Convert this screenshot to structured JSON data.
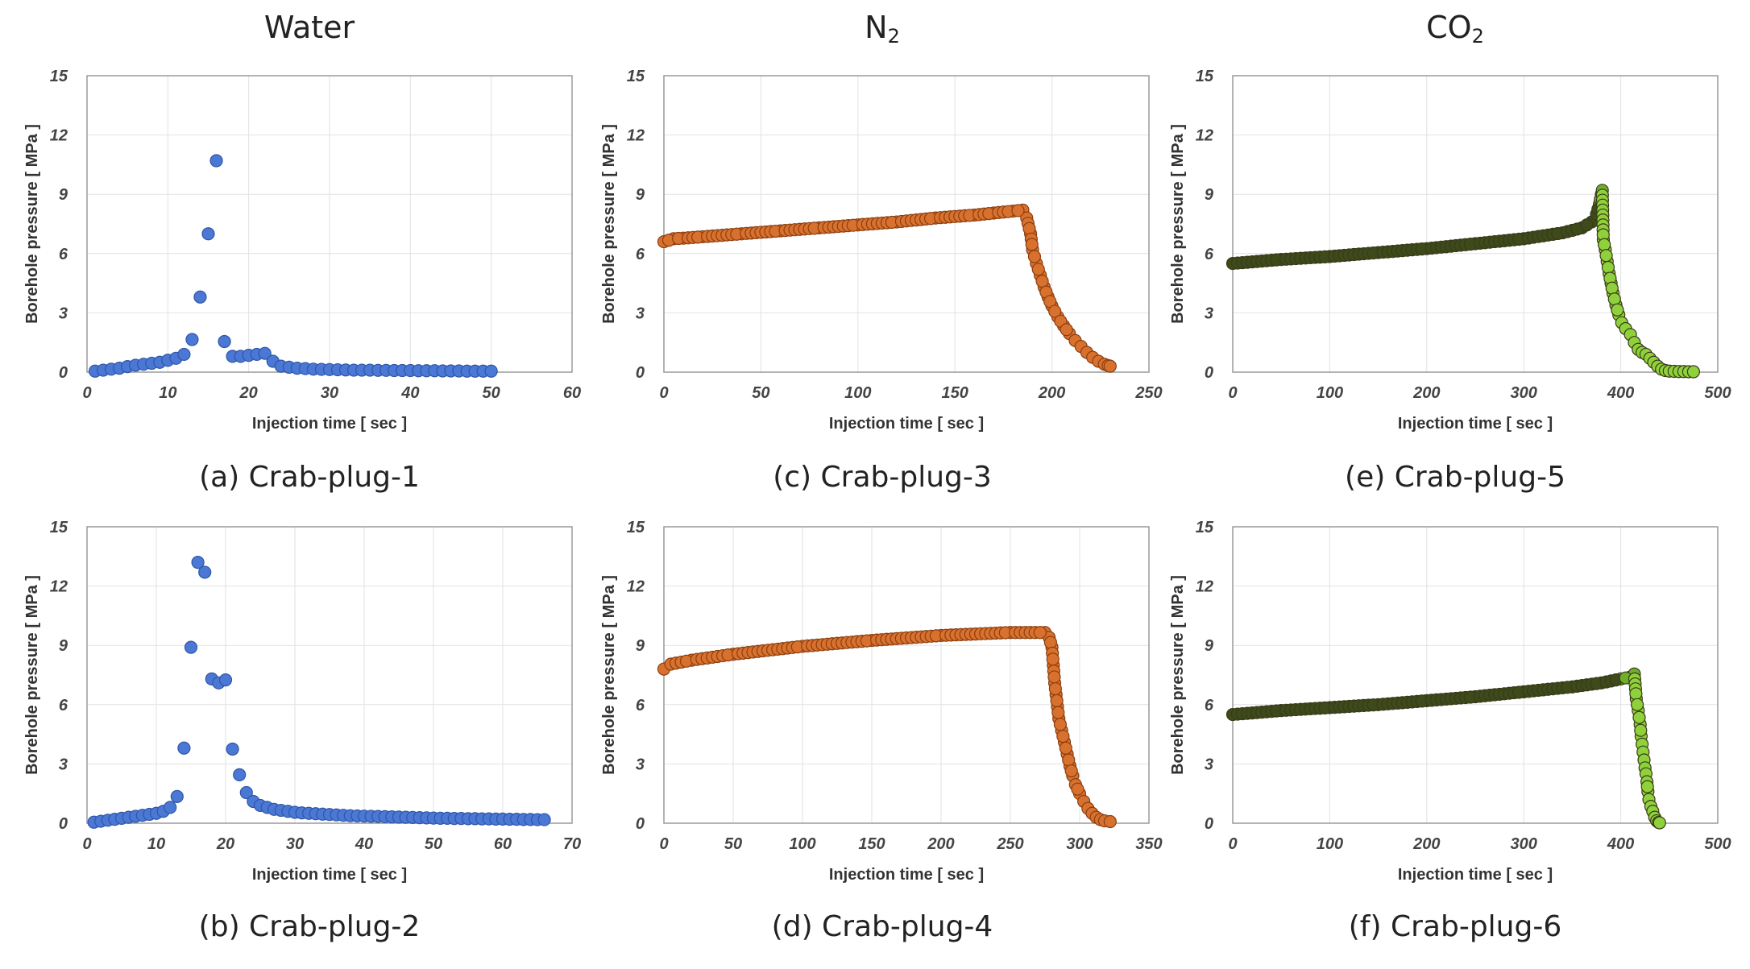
{
  "column_titles": [
    {
      "main": "Water",
      "sub": ""
    },
    {
      "main": "N",
      "sub": "2"
    },
    {
      "main": "CO",
      "sub": "2"
    }
  ],
  "chart_data": [
    {
      "type": "scatter",
      "caption": "(a) Crab-plug-1",
      "xlabel": "Injection time [ sec ]",
      "ylabel": "Borehole pressure [ MPa ]",
      "xlim": [
        0,
        60
      ],
      "xticks": [
        0,
        10,
        20,
        30,
        40,
        50,
        60
      ],
      "ylim": [
        0,
        15
      ],
      "yticks": [
        0,
        3,
        6,
        9,
        12,
        15
      ],
      "grid": true,
      "marker_color": "#4a78d4",
      "marker_edge": "#2f56a8",
      "marker_mode": "solid",
      "points": [
        [
          1,
          0.05
        ],
        [
          2,
          0.1
        ],
        [
          3,
          0.15
        ],
        [
          4,
          0.2
        ],
        [
          5,
          0.28
        ],
        [
          6,
          0.35
        ],
        [
          7,
          0.4
        ],
        [
          8,
          0.45
        ],
        [
          9,
          0.5
        ],
        [
          10,
          0.6
        ],
        [
          11,
          0.7
        ],
        [
          12,
          0.9
        ],
        [
          13,
          1.65
        ],
        [
          14,
          3.8
        ],
        [
          15,
          7.0
        ],
        [
          16,
          10.7
        ],
        [
          17,
          1.55
        ],
        [
          18,
          0.8
        ],
        [
          19,
          0.8
        ],
        [
          20,
          0.85
        ],
        [
          21,
          0.9
        ],
        [
          22,
          0.95
        ],
        [
          23,
          0.55
        ],
        [
          24,
          0.3
        ],
        [
          25,
          0.25
        ],
        [
          26,
          0.2
        ],
        [
          27,
          0.18
        ],
        [
          28,
          0.15
        ],
        [
          29,
          0.14
        ],
        [
          30,
          0.13
        ],
        [
          31,
          0.12
        ],
        [
          32,
          0.11
        ],
        [
          33,
          0.1
        ],
        [
          34,
          0.1
        ],
        [
          35,
          0.1
        ],
        [
          36,
          0.09
        ],
        [
          37,
          0.09
        ],
        [
          38,
          0.08
        ],
        [
          39,
          0.08
        ],
        [
          40,
          0.08
        ],
        [
          41,
          0.07
        ],
        [
          42,
          0.07
        ],
        [
          43,
          0.07
        ],
        [
          44,
          0.06
        ],
        [
          45,
          0.06
        ],
        [
          46,
          0.06
        ],
        [
          47,
          0.05
        ],
        [
          48,
          0.05
        ],
        [
          49,
          0.05
        ],
        [
          50,
          0.05
        ]
      ]
    },
    {
      "type": "scatter",
      "caption": "(b) Crab-plug-2",
      "xlabel": "Injection time [ sec ]",
      "ylabel": "Borehole pressure [ MPa ]",
      "xlim": [
        0,
        70
      ],
      "xticks": [
        0,
        10,
        20,
        30,
        40,
        50,
        60,
        70
      ],
      "ylim": [
        0,
        15
      ],
      "yticks": [
        0,
        3,
        6,
        9,
        12,
        15
      ],
      "grid": true,
      "marker_color": "#4a78d4",
      "marker_edge": "#2f56a8",
      "marker_mode": "solid",
      "points": [
        [
          1,
          0.05
        ],
        [
          2,
          0.1
        ],
        [
          3,
          0.15
        ],
        [
          4,
          0.2
        ],
        [
          5,
          0.25
        ],
        [
          6,
          0.3
        ],
        [
          7,
          0.35
        ],
        [
          8,
          0.4
        ],
        [
          9,
          0.45
        ],
        [
          10,
          0.5
        ],
        [
          11,
          0.6
        ],
        [
          12,
          0.8
        ],
        [
          13,
          1.35
        ],
        [
          14,
          3.8
        ],
        [
          15,
          8.9
        ],
        [
          16,
          13.2
        ],
        [
          17,
          12.7
        ],
        [
          18,
          7.3
        ],
        [
          19,
          7.1
        ],
        [
          20,
          7.25
        ],
        [
          21,
          3.75
        ],
        [
          22,
          2.45
        ],
        [
          23,
          1.55
        ],
        [
          24,
          1.1
        ],
        [
          25,
          0.9
        ],
        [
          26,
          0.8
        ],
        [
          27,
          0.7
        ],
        [
          28,
          0.65
        ],
        [
          29,
          0.6
        ],
        [
          30,
          0.55
        ],
        [
          31,
          0.52
        ],
        [
          32,
          0.5
        ],
        [
          33,
          0.48
        ],
        [
          34,
          0.46
        ],
        [
          35,
          0.44
        ],
        [
          36,
          0.42
        ],
        [
          37,
          0.4
        ],
        [
          38,
          0.38
        ],
        [
          39,
          0.37
        ],
        [
          40,
          0.36
        ],
        [
          41,
          0.35
        ],
        [
          42,
          0.34
        ],
        [
          43,
          0.33
        ],
        [
          44,
          0.32
        ],
        [
          45,
          0.31
        ],
        [
          46,
          0.3
        ],
        [
          47,
          0.29
        ],
        [
          48,
          0.28
        ],
        [
          49,
          0.27
        ],
        [
          50,
          0.26
        ],
        [
          51,
          0.25
        ],
        [
          52,
          0.25
        ],
        [
          53,
          0.24
        ],
        [
          54,
          0.24
        ],
        [
          55,
          0.23
        ],
        [
          56,
          0.23
        ],
        [
          57,
          0.22
        ],
        [
          58,
          0.22
        ],
        [
          59,
          0.21
        ],
        [
          60,
          0.21
        ],
        [
          61,
          0.2
        ],
        [
          62,
          0.2
        ],
        [
          63,
          0.19
        ],
        [
          64,
          0.19
        ],
        [
          65,
          0.18
        ],
        [
          66,
          0.18
        ]
      ]
    },
    {
      "type": "scatter",
      "caption": "(c) Crab-plug-3",
      "xlabel": "Injection time [ sec ]",
      "ylabel": "Borehole pressure [ MPa ]",
      "xlim": [
        0,
        250
      ],
      "xticks": [
        0,
        50,
        100,
        150,
        200,
        250
      ],
      "ylim": [
        0,
        15
      ],
      "yticks": [
        0,
        3,
        6,
        9,
        12,
        15
      ],
      "grid": true,
      "marker_color": "#d9712e",
      "marker_edge": "#8a3e10",
      "marker_mode": "solid",
      "points": [
        [
          0,
          6.6
        ],
        [
          5,
          6.75
        ],
        [
          10,
          6.78
        ],
        [
          20,
          6.85
        ],
        [
          40,
          7.0
        ],
        [
          60,
          7.15
        ],
        [
          80,
          7.3
        ],
        [
          100,
          7.45
        ],
        [
          120,
          7.6
        ],
        [
          140,
          7.8
        ],
        [
          160,
          7.95
        ],
        [
          170,
          8.05
        ],
        [
          180,
          8.15
        ],
        [
          185,
          8.2
        ],
        [
          187,
          7.8
        ],
        [
          189,
          7.0
        ],
        [
          190,
          6.2
        ],
        [
          192,
          5.5
        ],
        [
          194,
          4.9
        ],
        [
          196,
          4.3
        ],
        [
          198,
          3.8
        ],
        [
          200,
          3.35
        ],
        [
          203,
          2.8
        ],
        [
          206,
          2.35
        ],
        [
          209,
          1.95
        ],
        [
          212,
          1.6
        ],
        [
          215,
          1.3
        ],
        [
          218,
          1.0
        ],
        [
          221,
          0.75
        ],
        [
          224,
          0.55
        ],
        [
          227,
          0.4
        ],
        [
          229,
          0.33
        ],
        [
          230,
          0.3
        ]
      ]
    },
    {
      "type": "scatter",
      "caption": "(d) Crab-plug-4",
      "xlabel": "Injection time [ sec ]",
      "ylabel": "Borehole pressure [ MPa ]",
      "xlim": [
        0,
        350
      ],
      "xticks": [
        0,
        50,
        100,
        150,
        200,
        250,
        300,
        350
      ],
      "ylim": [
        0,
        15
      ],
      "yticks": [
        0,
        3,
        6,
        9,
        12,
        15
      ],
      "grid": true,
      "marker_color": "#d9712e",
      "marker_edge": "#8a3e10",
      "marker_mode": "solid",
      "points": [
        [
          0,
          7.8
        ],
        [
          5,
          8.05
        ],
        [
          20,
          8.25
        ],
        [
          50,
          8.55
        ],
        [
          100,
          8.95
        ],
        [
          150,
          9.25
        ],
        [
          200,
          9.5
        ],
        [
          250,
          9.65
        ],
        [
          275,
          9.65
        ],
        [
          278,
          9.4
        ],
        [
          280,
          8.9
        ],
        [
          281,
          8.0
        ],
        [
          282,
          7.1
        ],
        [
          283,
          6.5
        ],
        [
          284,
          5.9
        ],
        [
          285,
          5.3
        ],
        [
          287,
          4.7
        ],
        [
          289,
          4.1
        ],
        [
          291,
          3.5
        ],
        [
          293,
          2.9
        ],
        [
          295,
          2.4
        ],
        [
          297,
          1.95
        ],
        [
          300,
          1.5
        ],
        [
          303,
          1.1
        ],
        [
          306,
          0.75
        ],
        [
          309,
          0.5
        ],
        [
          312,
          0.3
        ],
        [
          315,
          0.18
        ],
        [
          318,
          0.12
        ],
        [
          322,
          0.08
        ]
      ]
    },
    {
      "type": "scatter",
      "caption": "(e) Crab-plug-5",
      "xlabel": "Injection time [ sec ]",
      "ylabel": "Borehole pressure [ MPa ]",
      "xlim": [
        0,
        500
      ],
      "xticks": [
        0,
        100,
        200,
        300,
        400,
        500
      ],
      "ylim": [
        0,
        15
      ],
      "yticks": [
        0,
        3,
        6,
        9,
        12,
        15
      ],
      "grid": true,
      "marker_color": "#8fd13a",
      "marker_edge": "#3a3a1a",
      "marker_mode": "co2",
      "points": [
        [
          0,
          5.5
        ],
        [
          50,
          5.7
        ],
        [
          100,
          5.85
        ],
        [
          150,
          6.05
        ],
        [
          200,
          6.25
        ],
        [
          250,
          6.5
        ],
        [
          300,
          6.75
        ],
        [
          340,
          7.05
        ],
        [
          360,
          7.3
        ],
        [
          370,
          7.6
        ],
        [
          375,
          8.0
        ],
        [
          378,
          8.5
        ],
        [
          380,
          9.0
        ],
        [
          381,
          9.2
        ],
        [
          382,
          6.7
        ],
        [
          384,
          6.2
        ],
        [
          386,
          5.6
        ],
        [
          388,
          5.0
        ],
        [
          390,
          4.5
        ],
        [
          392,
          4.0
        ],
        [
          395,
          3.4
        ],
        [
          398,
          2.9
        ],
        [
          401,
          2.5
        ],
        [
          405,
          2.2
        ],
        [
          410,
          1.9
        ],
        [
          414,
          1.5
        ],
        [
          418,
          1.15
        ],
        [
          422,
          1.0
        ],
        [
          426,
          0.9
        ],
        [
          430,
          0.7
        ],
        [
          434,
          0.5
        ],
        [
          438,
          0.3
        ],
        [
          442,
          0.15
        ],
        [
          446,
          0.08
        ],
        [
          450,
          0.05
        ],
        [
          455,
          0.04
        ],
        [
          460,
          0.03
        ],
        [
          465,
          0.03
        ],
        [
          470,
          0.02
        ],
        [
          475,
          0.02
        ]
      ]
    },
    {
      "type": "scatter",
      "caption": "(f) Crab-plug-6",
      "xlabel": "Injection time [ sec ]",
      "ylabel": "Borehole pressure [ MPa ]",
      "xlim": [
        0,
        500
      ],
      "xticks": [
        0,
        100,
        200,
        300,
        400,
        500
      ],
      "ylim": [
        0,
        15
      ],
      "yticks": [
        0,
        3,
        6,
        9,
        12,
        15
      ],
      "grid": true,
      "marker_color": "#8fd13a",
      "marker_edge": "#3a3a1a",
      "marker_mode": "co2",
      "points": [
        [
          0,
          5.5
        ],
        [
          50,
          5.7
        ],
        [
          100,
          5.85
        ],
        [
          150,
          6.0
        ],
        [
          200,
          6.2
        ],
        [
          250,
          6.4
        ],
        [
          300,
          6.65
        ],
        [
          350,
          6.9
        ],
        [
          380,
          7.1
        ],
        [
          400,
          7.3
        ],
        [
          410,
          7.4
        ],
        [
          414,
          7.55
        ],
        [
          416,
          6.3
        ],
        [
          418,
          5.7
        ],
        [
          420,
          5.0
        ],
        [
          421,
          4.4
        ],
        [
          422,
          4.0
        ],
        [
          423,
          3.6
        ],
        [
          424,
          3.2
        ],
        [
          425,
          2.8
        ],
        [
          426,
          2.5
        ],
        [
          427,
          2.1
        ],
        [
          428,
          1.6
        ],
        [
          429,
          1.2
        ],
        [
          431,
          0.85
        ],
        [
          433,
          0.6
        ],
        [
          435,
          0.3
        ],
        [
          437,
          0.12
        ],
        [
          439,
          0.04
        ],
        [
          440,
          0.02
        ]
      ]
    }
  ]
}
